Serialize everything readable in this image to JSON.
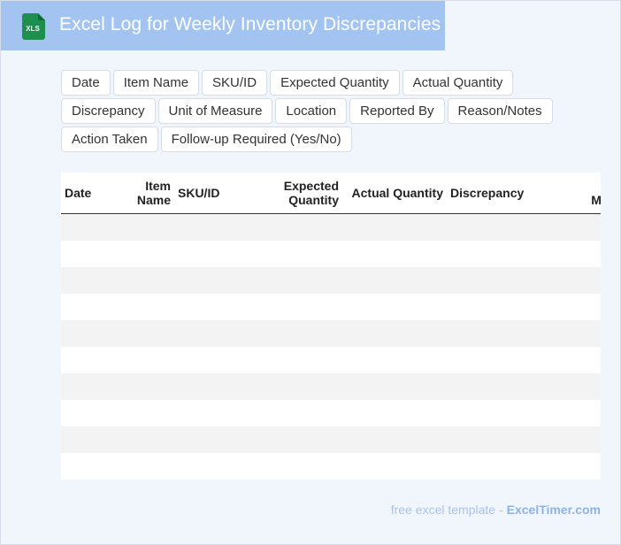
{
  "header": {
    "title": "Excel Log for Weekly Inventory Discrepancies",
    "icon": "xls-file-icon",
    "icon_label": "XLS",
    "icon_color": "#1e8f4e"
  },
  "fields": [
    "Date",
    "Item Name",
    "SKU/ID",
    "Expected Quantity",
    "Actual Quantity",
    "Discrepancy",
    "Unit of Measure",
    "Location",
    "Reported By",
    "Reason/Notes",
    "Action Taken",
    "Follow-up Required (Yes/No)"
  ],
  "table": {
    "columns": [
      {
        "label": "Date",
        "align": "left"
      },
      {
        "label": "Item Name",
        "align": "right"
      },
      {
        "label": "SKU/ID",
        "align": "left"
      },
      {
        "label": "Expected Quantity",
        "align": "right"
      },
      {
        "label": "Actual Quantity",
        "align": "right"
      },
      {
        "label": "Discrepancy",
        "align": "left"
      },
      {
        "label": "Unit of Measure",
        "align": "right"
      }
    ],
    "row_count": 10
  },
  "footer": {
    "lead": "free excel template -",
    "brand": "ExcelTimer.com"
  }
}
